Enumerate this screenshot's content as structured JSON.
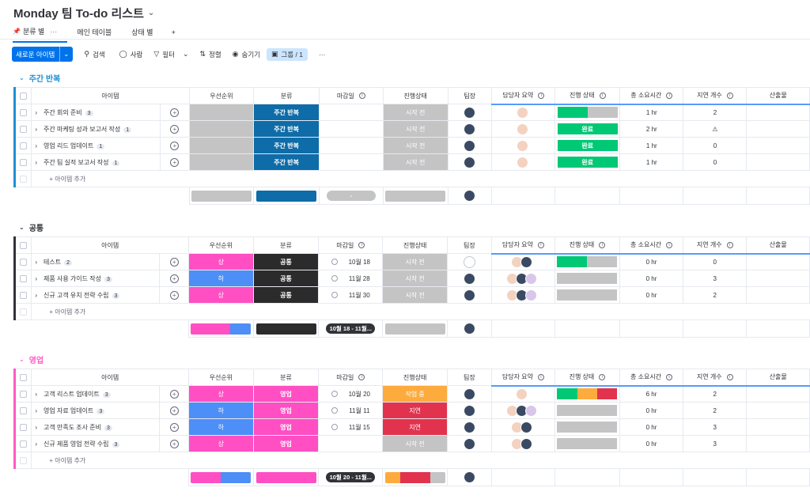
{
  "app": {
    "title": "Monday 팀 To-do 리스트"
  },
  "tabs": [
    {
      "label": "분류 별",
      "active": true
    },
    {
      "label": "메인 테이블",
      "active": false
    },
    {
      "label": "상태 별",
      "active": false
    },
    {
      "label": "+",
      "active": false
    }
  ],
  "toolbar": {
    "new_item": "새로운 아이템",
    "search": "검색",
    "person": "사람",
    "filter": "필터",
    "sort": "정렬",
    "hide": "숨기기",
    "group_by": "그룹 / 1",
    "more": "···"
  },
  "columns": [
    "아이템",
    "우선순위",
    "분류",
    "마감일",
    "진행상태",
    "팀장",
    "담당자 요약",
    "진행 상태",
    "총 소요시간",
    "지연 개수",
    "산출물"
  ],
  "add_item": "+ 아이템 추가",
  "colors": {
    "blue_group": "#1f8fd5",
    "dark_group": "#323338",
    "pink_group": "#ff5ac4",
    "category_blue": "#0e6ca8",
    "category_dark": "#2b2b2b",
    "category_pink": "#ff4fc3",
    "priority_high": "#ff4fc3",
    "priority_low": "#4e8ef7",
    "status_grey": "#c4c4c4",
    "status_working": "#fdab3d",
    "status_stuck": "#e2334e",
    "done_green": "#00c875"
  },
  "groups": [
    {
      "title": "주간 반복",
      "color": "#1f8fd5",
      "items": [
        {
          "name": "주간 회의 준비",
          "count": "3",
          "priority": "",
          "category": "주간 반복",
          "due": "",
          "status": "시작 전",
          "owner": "avatar",
          "assignees": 1,
          "progress": "",
          "hours": "1 hr",
          "delays": "2",
          "output": ""
        },
        {
          "name": "주간 마케팅 성과 보고서 작성",
          "count": "1",
          "priority": "",
          "category": "주간 반복",
          "due": "",
          "status": "시작 전",
          "owner": "avatar",
          "assignees": 1,
          "progress": "완료",
          "hours": "2 hr",
          "delays": "⚠",
          "output": ""
        },
        {
          "name": "영업 리드 업데이트",
          "count": "1",
          "priority": "",
          "category": "주간 반복",
          "due": "",
          "status": "시작 전",
          "owner": "avatar",
          "assignees": 1,
          "progress": "완료",
          "hours": "1 hr",
          "delays": "0",
          "output": ""
        },
        {
          "name": "주간 팀 실적 보고서 작성",
          "count": "1",
          "priority": "",
          "category": "주간 반복",
          "due": "",
          "status": "시작 전",
          "owner": "avatar",
          "assignees": 1,
          "progress": "완료",
          "hours": "1 hr",
          "delays": "0",
          "output": ""
        }
      ],
      "summary_due": "-"
    },
    {
      "title": "공통",
      "color": "#323338",
      "items": [
        {
          "name": "테스트",
          "count": "2",
          "priority": "상",
          "category": "공통",
          "due": "10월 18",
          "status": "시작 전",
          "owner": "empty",
          "assignees": 2,
          "progress": "",
          "hours": "0 hr",
          "delays": "0",
          "output": ""
        },
        {
          "name": "제품 사용 가이드 작성",
          "count": "3",
          "priority": "하",
          "category": "공통",
          "due": "11월 28",
          "status": "시작 전",
          "owner": "avatar",
          "assignees": 3,
          "progress": "",
          "hours": "0 hr",
          "delays": "3",
          "output": ""
        },
        {
          "name": "신규 고객 유치 전략 수립",
          "count": "3",
          "priority": "상",
          "category": "공통",
          "due": "11월 30",
          "status": "시작 전",
          "owner": "avatar",
          "assignees": 3,
          "progress": "",
          "hours": "0 hr",
          "delays": "2",
          "output": ""
        }
      ],
      "summary_due": "10월 18 - 11월..."
    },
    {
      "title": "영업",
      "color": "#ff5ac4",
      "items": [
        {
          "name": "고객 리스트 업데이트",
          "count": "3",
          "priority": "상",
          "category": "영업",
          "due": "10월 20",
          "status": "작업 중",
          "owner": "avatar",
          "assignees": 1,
          "progress": "",
          "hours": "6 hr",
          "delays": "2",
          "output": ""
        },
        {
          "name": "영업 자료 업데이트",
          "count": "3",
          "priority": "하",
          "category": "영업",
          "due": "11월 11",
          "status": "지연",
          "owner": "avatar",
          "assignees": 3,
          "progress": "",
          "hours": "0 hr",
          "delays": "2",
          "output": ""
        },
        {
          "name": "고객 만족도 조사 준비",
          "count": "3",
          "priority": "하",
          "category": "영업",
          "due": "11월 15",
          "status": "지연",
          "owner": "avatar",
          "assignees": 2,
          "progress": "",
          "hours": "0 hr",
          "delays": "3",
          "output": ""
        },
        {
          "name": "신규 제품 영업 전략 수립",
          "count": "3",
          "priority": "상",
          "category": "영업",
          "due": "",
          "status": "시작 전",
          "owner": "avatar",
          "assignees": 2,
          "progress": "",
          "hours": "0 hr",
          "delays": "3",
          "output": ""
        }
      ],
      "summary_due": "10월 20 - 11월..."
    }
  ]
}
